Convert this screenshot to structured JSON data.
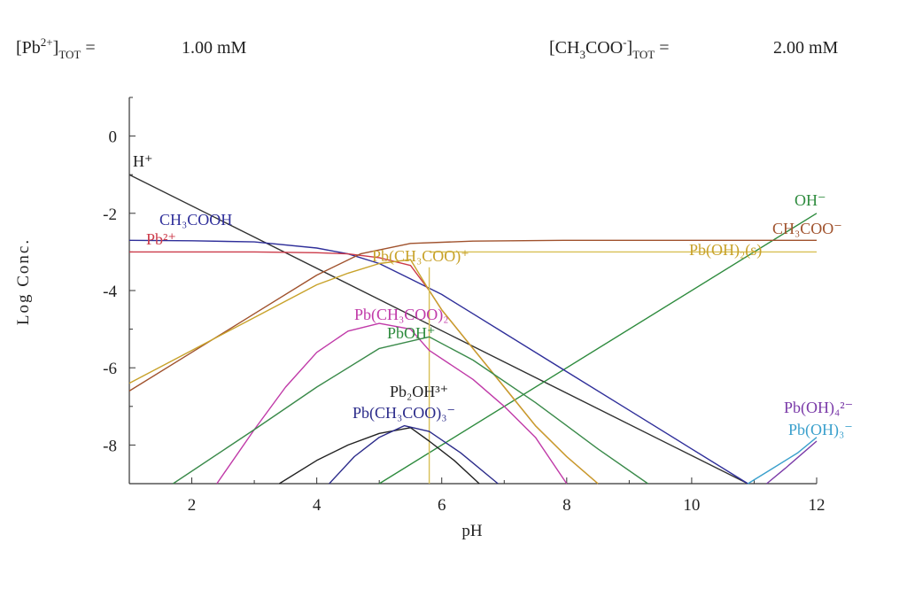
{
  "header": {
    "left_label": "[Pb2+]TOT =",
    "left_value": "1.00 mM",
    "right_label": "[CH3COO-]TOT =",
    "right_value": "2.00 mM"
  },
  "chart_data": {
    "type": "line",
    "title": "",
    "xlabel": "pH",
    "ylabel": "Log Conc.",
    "xlim": [
      1,
      12
    ],
    "ylim": [
      -9,
      1
    ],
    "xticks": [
      2,
      4,
      6,
      8,
      10,
      12
    ],
    "yticks": [
      0,
      -2,
      -4,
      -6,
      -8
    ],
    "series": [
      {
        "name": "H+",
        "color": "#333333",
        "x": [
          1,
          10.9
        ],
        "y": [
          -1,
          -9
        ]
      },
      {
        "name": "OH-",
        "color": "#2e8b3e",
        "x": [
          5,
          12
        ],
        "y": [
          -9,
          -2
        ]
      },
      {
        "name": "CH3COOH",
        "color": "#2f2f9a",
        "x": [
          1,
          2,
          3,
          4,
          4.5,
          5,
          5.5,
          6,
          6.5,
          7,
          8,
          9,
          10,
          10.9
        ],
        "y": [
          -2.7,
          -2.71,
          -2.74,
          -2.9,
          -3.05,
          -3.3,
          -3.7,
          -4.1,
          -4.6,
          -5.1,
          -6.1,
          -7.1,
          -8.1,
          -9
        ]
      },
      {
        "name": "Pb2+",
        "color": "#cc3b4a",
        "x": [
          1,
          3,
          4,
          4.5,
          5,
          5.5,
          5.8,
          6,
          6.5,
          7,
          7.5,
          8,
          8.5
        ],
        "y": [
          -3,
          -3.0,
          -3.02,
          -3.05,
          -3.15,
          -3.35,
          -4.0,
          -4.5,
          -5.5,
          -6.5,
          -7.5,
          -8.3,
          -9
        ]
      },
      {
        "name": "CH3COO-",
        "color": "#a0522d",
        "x": [
          1,
          2,
          3,
          4,
          4.7,
          5.5,
          6.5,
          8,
          10,
          12
        ],
        "y": [
          -6.6,
          -5.6,
          -4.6,
          -3.6,
          -3.05,
          -2.78,
          -2.72,
          -2.7,
          -2.7,
          -2.7
        ]
      },
      {
        "name": "Pb(CH3COO)+",
        "color": "#c8a22a",
        "x": [
          1,
          2,
          3,
          4,
          4.5,
          5,
          5.5,
          5.8,
          6,
          6.5,
          7,
          7.5,
          8,
          8.5
        ],
        "y": [
          -6.4,
          -5.55,
          -4.7,
          -3.85,
          -3.55,
          -3.3,
          -3.2,
          -4.0,
          -4.5,
          -5.5,
          -6.5,
          -7.5,
          -8.3,
          -9
        ]
      },
      {
        "name": "Pb(OH)2(s)",
        "color": "#d8c055",
        "x": [
          5.8,
          6.5,
          8,
          10,
          12
        ],
        "y": [
          -3,
          -3,
          -3,
          -3,
          -3
        ]
      },
      {
        "name": "Pb(OH)2(s) boundary",
        "color": "#d8c055",
        "x": [
          5.8,
          5.8
        ],
        "y": [
          -3.4,
          -9
        ]
      },
      {
        "name": "Pb(CH3COO)2",
        "color": "#c03aa8",
        "x": [
          2.4,
          3,
          3.5,
          4,
          4.5,
          5,
          5.5,
          5.8,
          6.5,
          7,
          7.5,
          8
        ],
        "y": [
          -9,
          -7.6,
          -6.5,
          -5.6,
          -5.05,
          -4.85,
          -5.0,
          -5.55,
          -6.3,
          -7.0,
          -7.8,
          -9
        ]
      },
      {
        "name": "PbOH+",
        "color": "#3a8a4a",
        "x": [
          1.7,
          3,
          4,
          5,
          5.8,
          6.5,
          7.5,
          8.5,
          9.3
        ],
        "y": [
          -9,
          -7.6,
          -6.5,
          -5.5,
          -5.2,
          -5.8,
          -6.9,
          -8.1,
          -9
        ]
      },
      {
        "name": "Pb2OH3+",
        "color": "#222222",
        "x": [
          3.4,
          4,
          4.5,
          5,
          5.5,
          5.8,
          6.2,
          6.6
        ],
        "y": [
          -9,
          -8.4,
          -8.0,
          -7.7,
          -7.55,
          -7.9,
          -8.4,
          -9
        ]
      },
      {
        "name": "Pb(CH3COO)3-",
        "color": "#2b2b8a",
        "x": [
          4.2,
          4.6,
          5,
          5.4,
          5.8,
          6.3,
          6.9
        ],
        "y": [
          -9,
          -8.3,
          -7.8,
          -7.5,
          -7.65,
          -8.2,
          -9
        ]
      },
      {
        "name": "Pb(OH)4 2-",
        "color": "#7a3aa8",
        "x": [
          11.2,
          11.5,
          12
        ],
        "y": [
          -9,
          -8.6,
          -7.9
        ]
      },
      {
        "name": "Pb(OH)3-",
        "color": "#3aa0cc",
        "x": [
          10.9,
          11.3,
          11.7,
          12
        ],
        "y": [
          -9,
          -8.6,
          -8.2,
          -7.8
        ]
      }
    ],
    "annotations": [
      {
        "text": "H⁺",
        "color": "#222222"
      },
      {
        "text": "CH₃COOH",
        "color": "#2f2f9a"
      },
      {
        "text": "Pb²⁺",
        "color": "#cc3b4a"
      },
      {
        "text": "Pb(CH₃COO)⁺",
        "color": "#c8a22a"
      },
      {
        "text": "Pb(CH₃COO)₂",
        "color": "#c03aa8"
      },
      {
        "text": "PbOH⁺",
        "color": "#2e8b3e"
      },
      {
        "text": "Pb₂OH³⁺",
        "color": "#222222"
      },
      {
        "text": "Pb(CH₃COO)₃⁻",
        "color": "#2b2b8a"
      },
      {
        "text": "OH⁻",
        "color": "#2e8b3e"
      },
      {
        "text": "CH₃COO⁻",
        "color": "#a0522d"
      },
      {
        "text": "Pb(OH)₂(s)",
        "color": "#c8a22a"
      },
      {
        "text": "Pb(OH)₄²⁻",
        "color": "#7a3aa8"
      },
      {
        "text": "Pb(OH)₃⁻",
        "color": "#3aa0cc"
      }
    ]
  }
}
